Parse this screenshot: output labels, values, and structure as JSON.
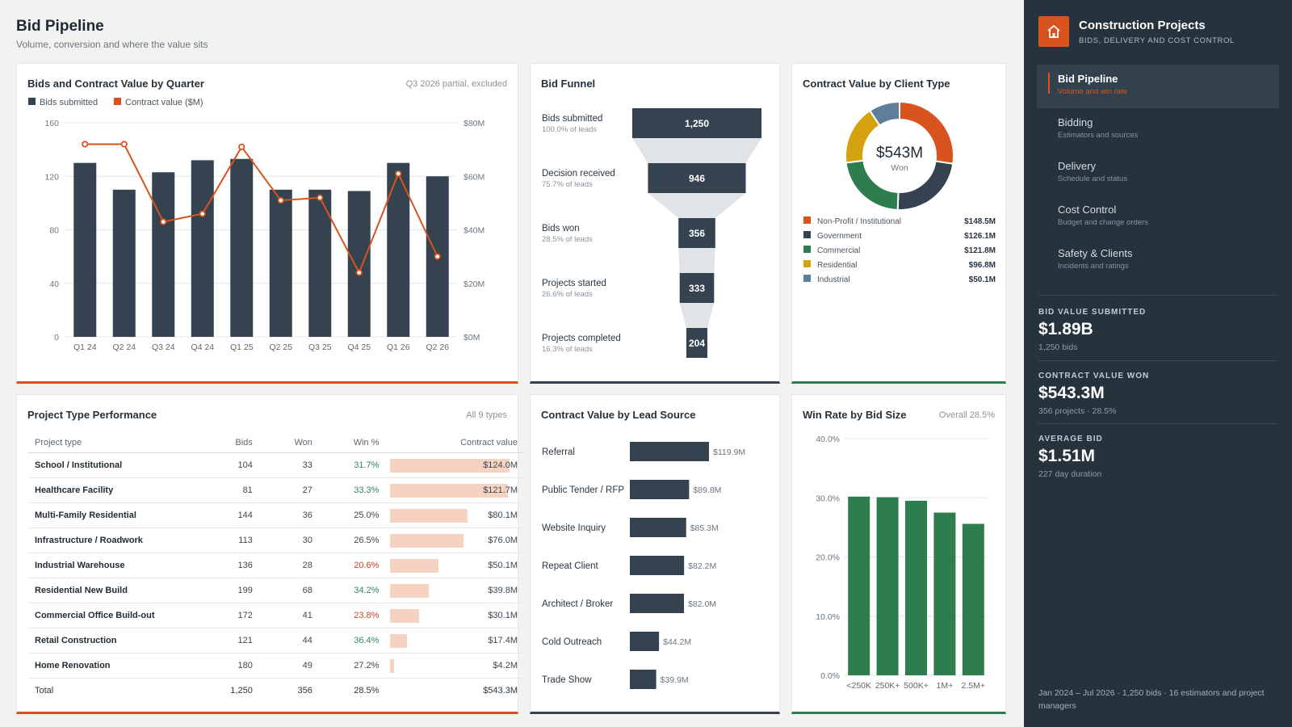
{
  "header": {
    "title": "Bid Pipeline",
    "subtitle": "Volume, conversion and where the value sits"
  },
  "colors": {
    "orange": "#d9531e",
    "navy": "#34434f",
    "green": "#2e7d4f",
    "gold": "#d4a20e",
    "slate": "#5f7e9c",
    "sidebar": "#26323c"
  },
  "quarter_chart": {
    "title": "Bids and Contract Value by Quarter",
    "note": "Q3 2026 partial, excluded",
    "legend": [
      "Bids submitted",
      "Contract value ($M)"
    ]
  },
  "funnel": {
    "title": "Bid Funnel"
  },
  "client": {
    "title": "Contract Value by Client Type",
    "center_value": "$543M",
    "center_label": "Won",
    "legend": [
      {
        "name": "Non-Profit / Institutional",
        "value": "$148.5M",
        "color": "#d9531e"
      },
      {
        "name": "Government",
        "value": "$126.1M",
        "color": "#34434f"
      },
      {
        "name": "Commercial",
        "value": "$121.8M",
        "color": "#2e7d4f"
      },
      {
        "name": "Residential",
        "value": "$96.8M",
        "color": "#d4a20e"
      },
      {
        "name": "Industrial",
        "value": "$50.1M",
        "color": "#5f7e9c"
      }
    ]
  },
  "project_types": {
    "title": "Project Type Performance",
    "note": "All 9 types",
    "headers": [
      "Project type",
      "Bids",
      "Won",
      "Win %",
      "Contract value"
    ],
    "rows": [
      {
        "name": "School / Institutional",
        "bids": "104",
        "won": "33",
        "win": "31.7%",
        "value": "$124.0M",
        "v": 124.0,
        "tone": "good"
      },
      {
        "name": "Healthcare Facility",
        "bids": "81",
        "won": "27",
        "win": "33.3%",
        "value": "$121.7M",
        "v": 121.7,
        "tone": "good"
      },
      {
        "name": "Multi-Family Residential",
        "bids": "144",
        "won": "36",
        "win": "25.0%",
        "value": "$80.1M",
        "v": 80.1,
        "tone": ""
      },
      {
        "name": "Infrastructure / Roadwork",
        "bids": "113",
        "won": "30",
        "win": "26.5%",
        "value": "$76.0M",
        "v": 76.0,
        "tone": ""
      },
      {
        "name": "Industrial Warehouse",
        "bids": "136",
        "won": "28",
        "win": "20.6%",
        "value": "$50.1M",
        "v": 50.1,
        "tone": "bad"
      },
      {
        "name": "Residential New Build",
        "bids": "199",
        "won": "68",
        "win": "34.2%",
        "value": "$39.8M",
        "v": 39.8,
        "tone": "good"
      },
      {
        "name": "Commercial Office Build-out",
        "bids": "172",
        "won": "41",
        "win": "23.8%",
        "value": "$30.1M",
        "v": 30.1,
        "tone": "bad"
      },
      {
        "name": "Retail Construction",
        "bids": "121",
        "won": "44",
        "win": "36.4%",
        "value": "$17.4M",
        "v": 17.4,
        "tone": "good"
      },
      {
        "name": "Home Renovation",
        "bids": "180",
        "won": "49",
        "win": "27.2%",
        "value": "$4.2M",
        "v": 4.2,
        "tone": ""
      }
    ],
    "total": {
      "name": "Total",
      "bids": "1,250",
      "won": "356",
      "win": "28.5%",
      "value": "$543.3M"
    }
  },
  "lead_source": {
    "title": "Contract Value by Lead Source"
  },
  "win_rate": {
    "title": "Win Rate by Bid Size",
    "note": "Overall 28.5%"
  },
  "sidebar": {
    "brand_title": "Construction Projects",
    "brand_sub": "BIDS, DELIVERY AND COST CONTROL",
    "brand_icon": "house-icon",
    "nav": [
      {
        "label": "Bid Pipeline",
        "desc": "Volume and win rate",
        "active": true
      },
      {
        "label": "Bidding",
        "desc": "Estimators and sources",
        "active": false
      },
      {
        "label": "Delivery",
        "desc": "Schedule and status",
        "active": false
      },
      {
        "label": "Cost Control",
        "desc": "Budget and change orders",
        "active": false
      },
      {
        "label": "Safety & Clients",
        "desc": "Incidents and ratings",
        "active": false
      }
    ],
    "kpis": [
      {
        "label": "BID VALUE SUBMITTED",
        "value": "$1.89B",
        "sub": "1,250 bids"
      },
      {
        "label": "CONTRACT VALUE WON",
        "value": "$543.3M",
        "sub": "356 projects · 28.5%"
      },
      {
        "label": "AVERAGE BID",
        "value": "$1.51M",
        "sub": "227 day duration"
      }
    ],
    "footer": "Jan 2024 – Jul 2026 · 1,250 bids · 16 estimators and project managers"
  },
  "chart_data": [
    {
      "type": "bar",
      "title": "Bids and Contract Value by Quarter",
      "categories": [
        "Q1 24",
        "Q2 24",
        "Q3 24",
        "Q4 24",
        "Q1 25",
        "Q2 25",
        "Q3 25",
        "Q4 25",
        "Q1 26",
        "Q2 26"
      ],
      "series": [
        {
          "name": "Bids submitted",
          "type": "bar",
          "axis": "left",
          "values": [
            130,
            110,
            123,
            132,
            133,
            110,
            110,
            109,
            130,
            120
          ]
        },
        {
          "name": "Contract value ($M)",
          "type": "line",
          "axis": "right",
          "values": [
            72,
            72,
            43,
            46,
            71,
            51,
            52,
            24,
            61,
            30
          ]
        }
      ],
      "ylim": [
        0,
        160
      ],
      "yticks": [
        "0",
        "40",
        "80",
        "120",
        "160"
      ],
      "y2lim": [
        0,
        80
      ],
      "y2ticks": [
        "$0M",
        "$20M",
        "$40M",
        "$60M",
        "$80M"
      ]
    },
    {
      "type": "bar",
      "title": "Bid Funnel",
      "categories": [
        "Bids submitted",
        "Decision received",
        "Bids won",
        "Projects started",
        "Projects completed"
      ],
      "values": [
        1250,
        946,
        356,
        333,
        204
      ],
      "value_labels": [
        "1,250",
        "946",
        "356",
        "333",
        "204"
      ],
      "pct_labels": [
        "100.0% of leads",
        "75.7% of leads",
        "28.5% of leads",
        "26.6% of leads",
        "16.3% of leads"
      ]
    },
    {
      "type": "pie",
      "title": "Contract Value by Client Type",
      "categories": [
        "Non-Profit / Institutional",
        "Government",
        "Commercial",
        "Residential",
        "Industrial"
      ],
      "values": [
        148.5,
        126.1,
        121.8,
        96.8,
        50.1
      ]
    },
    {
      "type": "bar",
      "title": "Contract Value by Lead Source",
      "categories": [
        "Referral",
        "Public Tender / RFP",
        "Website Inquiry",
        "Repeat Client",
        "Architect / Broker",
        "Cold Outreach",
        "Trade Show"
      ],
      "values": [
        119.9,
        89.8,
        85.3,
        82.2,
        82.0,
        44.2,
        39.9
      ],
      "value_labels": [
        "$119.9M",
        "$89.8M",
        "$85.3M",
        "$82.2M",
        "$82.0M",
        "$44.2M",
        "$39.9M"
      ]
    },
    {
      "type": "bar",
      "title": "Win Rate by Bid Size",
      "categories": [
        "<250K",
        "250K+",
        "500K+",
        "1M+",
        "2.5M+"
      ],
      "values": [
        30.2,
        30.1,
        29.5,
        27.5,
        25.6
      ],
      "ylim": [
        0,
        40
      ],
      "yticks": [
        "0.0%",
        "10.0%",
        "20.0%",
        "30.0%",
        "40.0%"
      ]
    }
  ]
}
